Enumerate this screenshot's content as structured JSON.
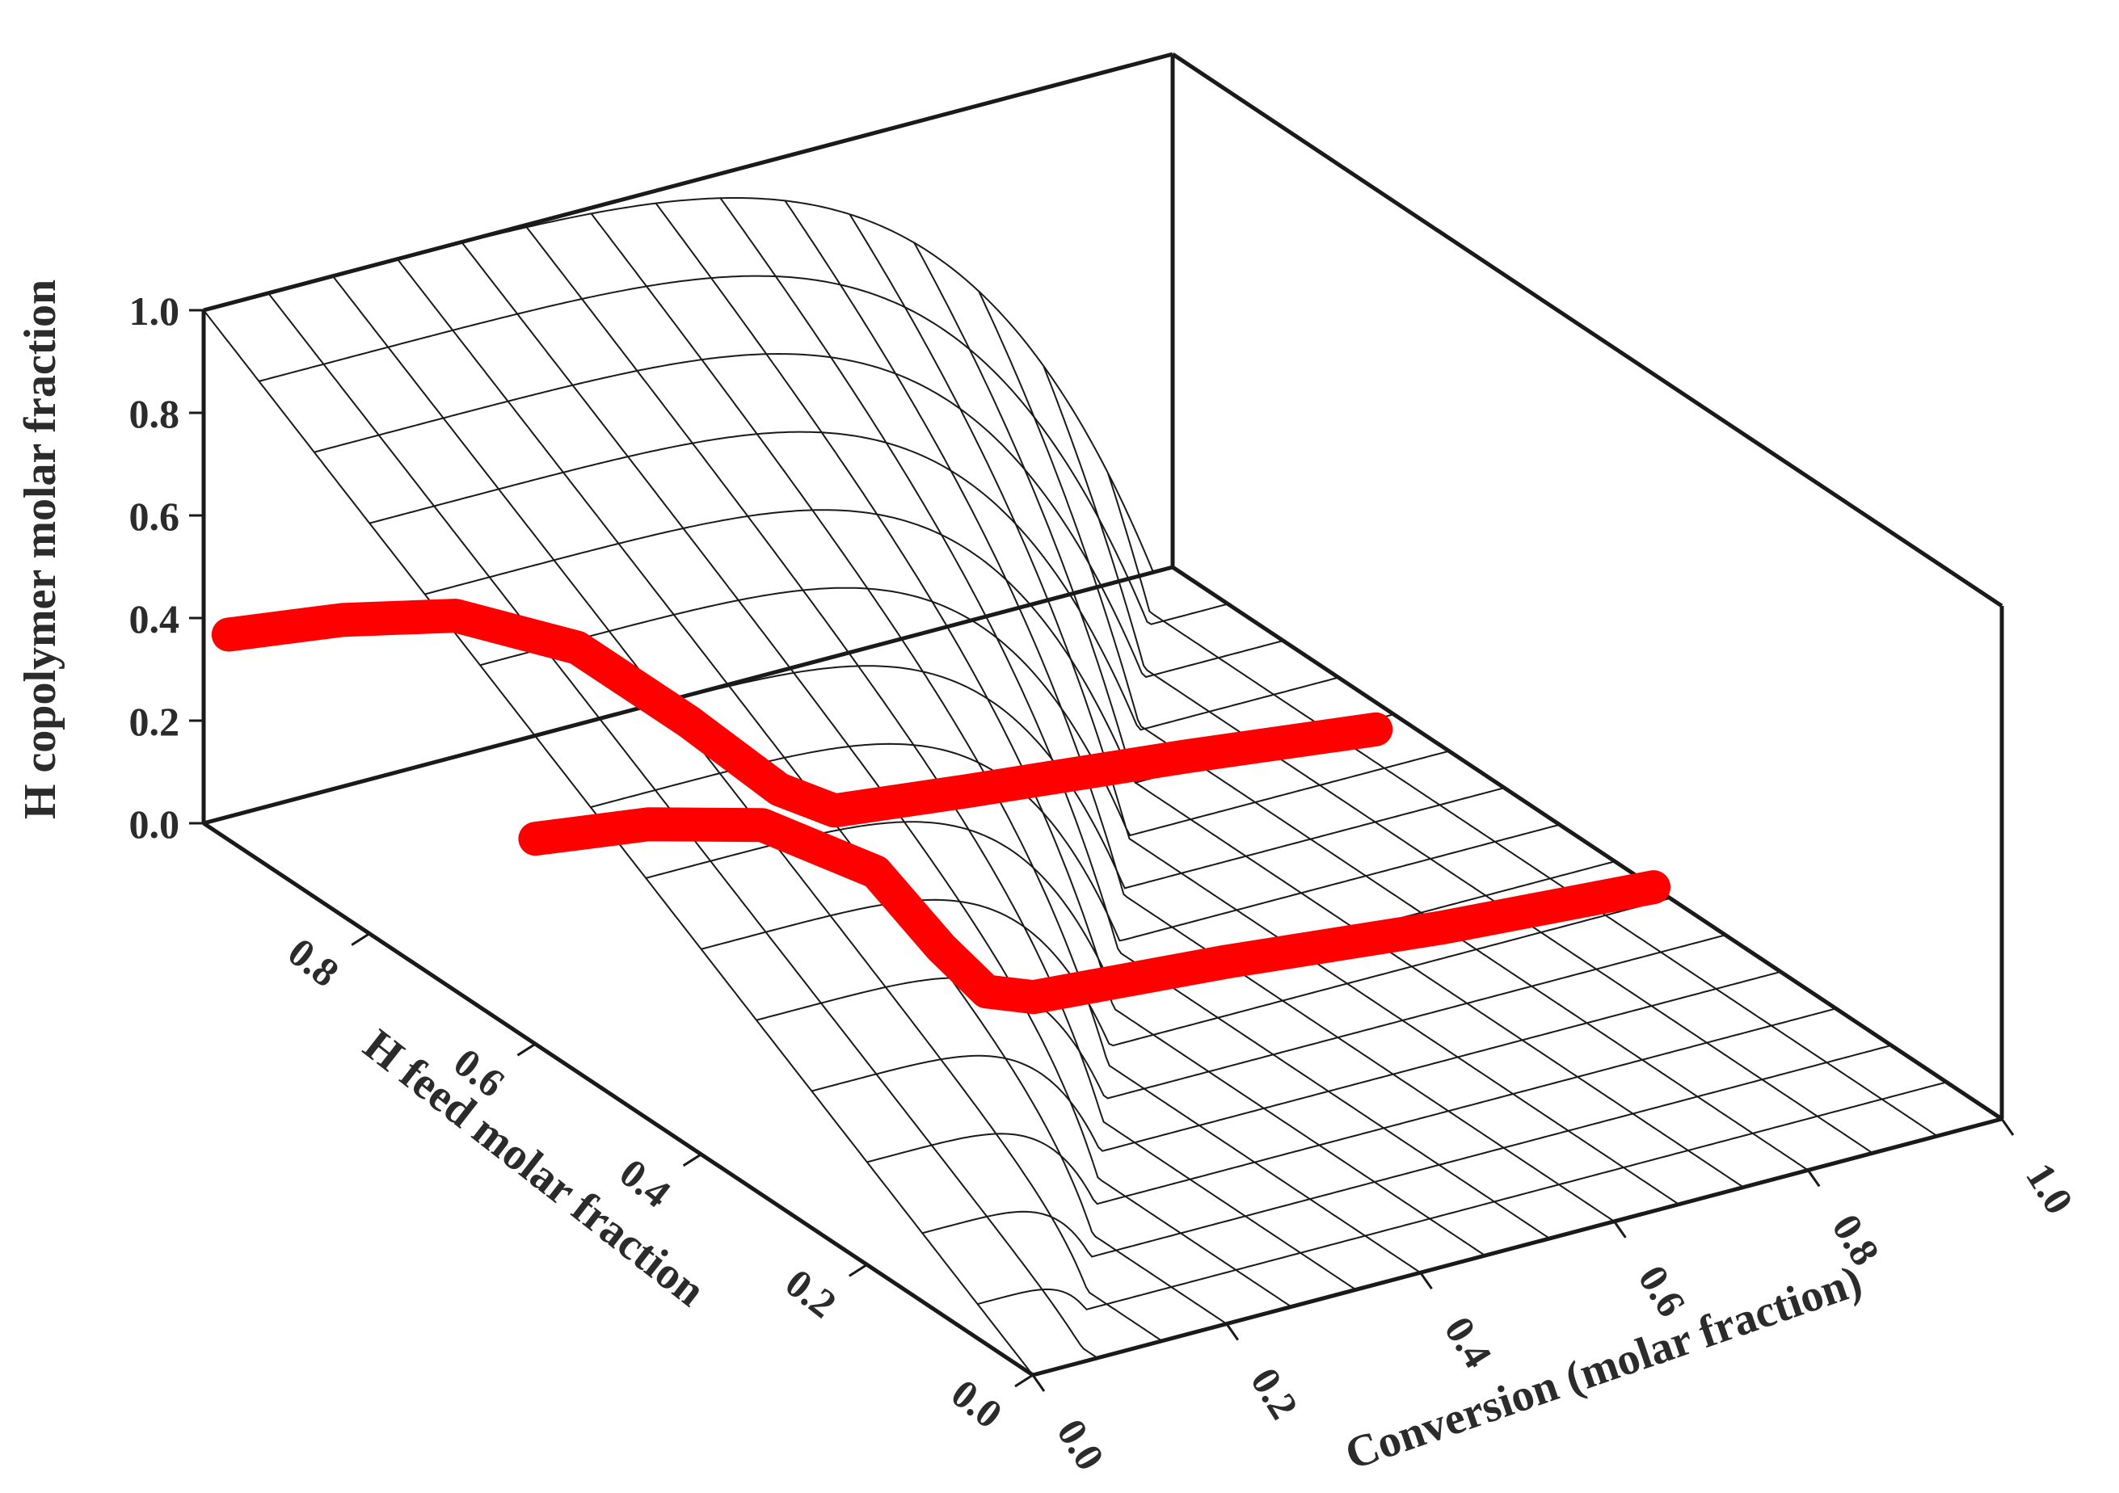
{
  "chart_data": {
    "type": "surface3d",
    "title": "",
    "axes": {
      "x": {
        "label": "Conversion (molar fraction)",
        "ticks": [
          "0.0",
          "0.2",
          "0.4",
          "0.6",
          "0.8",
          "1.0"
        ],
        "range": [
          0,
          1
        ]
      },
      "y": {
        "label": "H feed molar fraction",
        "ticks": [
          "0.0",
          "0.2",
          "0.4",
          "0.6",
          "0.8"
        ],
        "range": [
          0,
          1
        ]
      },
      "z": {
        "label": "H copolymer molar fraction",
        "ticks": [
          "0.0",
          "0.2",
          "0.4",
          "0.6",
          "0.8",
          "1.0"
        ],
        "range": [
          0,
          1
        ]
      }
    },
    "surface": {
      "description_values": "H copolymer molar fraction as a function of conversion and H feed molar fraction",
      "x_grid": [
        0.0,
        0.0667,
        0.1333,
        0.2,
        0.2667,
        0.3333,
        0.4,
        0.4667,
        0.5333,
        0.6,
        0.6667,
        0.7333,
        0.8,
        0.8667,
        0.9333,
        1.0
      ],
      "y_grid": [
        0.0,
        0.0667,
        0.1333,
        0.2,
        0.2667,
        0.3333,
        0.4,
        0.4667,
        0.5333,
        0.6,
        0.6667,
        0.7333,
        0.8,
        0.8667,
        0.9333,
        1.0
      ],
      "drop_conversion_at_feed_0": 0.05,
      "drop_conversion_at_feed_1": 0.98
    },
    "highlighted_paths": [
      {
        "color": "#ff0000",
        "points": [
          [
            0.0,
            0.6,
            0.4
          ],
          [
            0.1,
            0.58,
            0.4
          ],
          [
            0.2,
            0.56,
            0.37
          ],
          [
            0.3,
            0.54,
            0.25
          ],
          [
            0.35,
            0.52,
            0.1
          ],
          [
            0.38,
            0.5,
            0.02
          ],
          [
            0.42,
            0.49,
            0.0
          ],
          [
            0.6,
            0.47,
            0.0
          ],
          [
            0.8,
            0.44,
            0.0
          ],
          [
            1.0,
            0.42,
            0.0
          ]
        ]
      },
      {
        "color": "#ff0000",
        "points": [
          [
            0.0,
            0.97,
            0.4
          ],
          [
            0.1,
            0.95,
            0.4
          ],
          [
            0.2,
            0.93,
            0.38
          ],
          [
            0.3,
            0.9,
            0.3
          ],
          [
            0.38,
            0.86,
            0.16
          ],
          [
            0.44,
            0.82,
            0.04
          ],
          [
            0.48,
            0.8,
            0.0
          ],
          [
            0.6,
            0.78,
            0.0
          ],
          [
            0.8,
            0.75,
            0.0
          ],
          [
            0.97,
            0.72,
            0.0
          ]
        ]
      }
    ],
    "grid": false,
    "legend": "none"
  }
}
